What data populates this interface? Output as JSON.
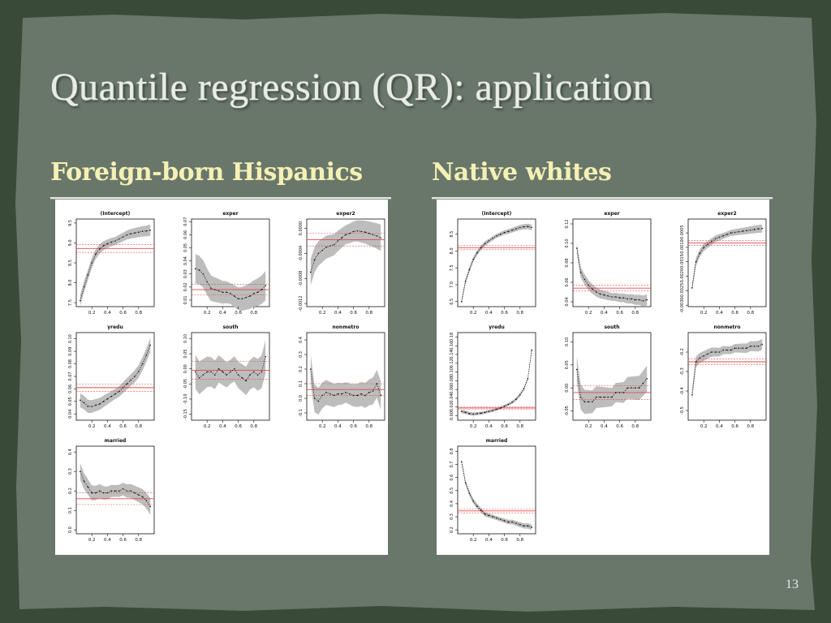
{
  "slide": {
    "title": "Quantile regression (QR): application",
    "left_heading": "Foreign-born Hispanics",
    "right_heading": "Native whites",
    "page_number": "13"
  },
  "colors": {
    "background_outer": "#3a4a38",
    "panel": "#69776a",
    "title_text": "#e9ece6",
    "heading_text": "#f5f0b4",
    "band_fill": "#bdbdbd",
    "ols_line": "#e24a4a"
  },
  "chart_data": [
    {
      "type": "line",
      "group": "Foreign-born Hispanics",
      "x": [
        0.05,
        0.1,
        0.15,
        0.2,
        0.25,
        0.3,
        0.35,
        0.4,
        0.45,
        0.5,
        0.55,
        0.6,
        0.65,
        0.7,
        0.75,
        0.8,
        0.85,
        0.9,
        0.95
      ],
      "panels": [
        {
          "title": "(Intercept)",
          "ylim": [
            7.4,
            9.6
          ],
          "yticks": [
            "7.5",
            "8.0",
            "8.5",
            "9.0",
            "9.5"
          ],
          "qr": [
            7.55,
            7.9,
            8.2,
            8.5,
            8.72,
            8.85,
            8.93,
            8.98,
            9.02,
            9.05,
            9.1,
            9.15,
            9.2,
            9.23,
            9.25,
            9.27,
            9.29,
            9.3,
            9.32
          ],
          "band": 0.1,
          "ols": 8.86,
          "ols_ci": 0.1
        },
        {
          "title": "exper",
          "ylim": [
            0.005,
            0.072
          ],
          "yticks": [
            "0.01",
            "0.02",
            "0.03",
            "0.04",
            "0.05",
            "0.06",
            "0.07"
          ],
          "qr": [
            0.034,
            0.033,
            0.03,
            0.024,
            0.019,
            0.018,
            0.017,
            0.016,
            0.016,
            0.015,
            0.013,
            0.011,
            0.011,
            0.012,
            0.013,
            0.015,
            0.016,
            0.018,
            0.021
          ],
          "band": 0.008,
          "ols": 0.018,
          "ols_ci": 0.004
        },
        {
          "title": "exper2",
          "ylim": [
            -0.00125,
            0.00015
          ],
          "yticks": [
            "-0.0012",
            "-0.0008",
            "-0.0004",
            "0.0000"
          ],
          "qr": [
            -0.0007,
            -0.0005,
            -0.0004,
            -0.00035,
            -0.0003,
            -0.00028,
            -0.00026,
            -0.0002,
            -0.00015,
            -0.0001,
            -8e-05,
            -5e-05,
            -4e-05,
            -5e-05,
            -6e-05,
            -8e-05,
            -0.0001,
            -0.00012,
            -0.00015
          ],
          "band": 0.00015,
          "ols": -0.00018,
          "ols_ci": 0.0001
        },
        {
          "title": "yredu",
          "ylim": [
            0.035,
            0.105
          ],
          "yticks": [
            "0.04",
            "0.05",
            "0.06",
            "0.07",
            "0.08",
            "0.09",
            "0.10"
          ],
          "qr": [
            0.051,
            0.049,
            0.046,
            0.046,
            0.047,
            0.048,
            0.05,
            0.052,
            0.054,
            0.056,
            0.058,
            0.061,
            0.064,
            0.067,
            0.07,
            0.074,
            0.08,
            0.087,
            0.095
          ],
          "band": 0.004,
          "ols": 0.061,
          "ols_ci": 0.003
        },
        {
          "title": "south",
          "ylim": [
            -0.17,
            0.12
          ],
          "yticks": [
            "-0.15",
            "-0.10",
            "-0.05",
            "0.00",
            "0.05",
            "0.10"
          ],
          "qr": [
            -0.01,
            -0.03,
            -0.02,
            -0.01,
            -0.01,
            -0.02,
            0.0,
            -0.01,
            -0.02,
            -0.01,
            0.0,
            -0.02,
            -0.03,
            -0.04,
            -0.02,
            -0.01,
            -0.02,
            -0.01,
            0.04
          ],
          "band": 0.04,
          "ols": -0.005,
          "ols_ci": 0.03
        },
        {
          "title": "nonmetro",
          "ylim": [
            -0.15,
            0.45
          ],
          "yticks": [
            "-0.1",
            "0.0",
            "0.1",
            "0.2",
            "0.3",
            "0.4"
          ],
          "qr": [
            0.2,
            0.0,
            -0.02,
            0.02,
            0.04,
            0.03,
            0.02,
            0.03,
            0.03,
            0.04,
            0.03,
            0.02,
            0.02,
            0.03,
            0.02,
            0.04,
            0.05,
            0.1,
            0.02
          ],
          "band": 0.07,
          "ols": 0.06,
          "ols_ci": 0.04
        },
        {
          "title": "married",
          "ylim": [
            -0.02,
            0.43
          ],
          "yticks": [
            "0.0",
            "0.1",
            "0.2",
            "0.3",
            "0.4"
          ],
          "qr": [
            0.3,
            0.25,
            0.22,
            0.19,
            0.19,
            0.2,
            0.19,
            0.19,
            0.2,
            0.2,
            0.2,
            0.21,
            0.2,
            0.2,
            0.19,
            0.18,
            0.17,
            0.15,
            0.12
          ],
          "band": 0.03,
          "ols": 0.16,
          "ols_ci": 0.03
        }
      ]
    },
    {
      "type": "line",
      "group": "Native whites",
      "x": [
        0.05,
        0.1,
        0.15,
        0.2,
        0.25,
        0.3,
        0.35,
        0.4,
        0.45,
        0.5,
        0.55,
        0.6,
        0.65,
        0.7,
        0.75,
        0.8,
        0.85,
        0.9,
        0.95
      ],
      "panels": [
        {
          "title": "(Intercept)",
          "ylim": [
            6.35,
            8.95
          ],
          "yticks": [
            "6.5",
            "7.0",
            "7.5",
            "8.0",
            "8.5"
          ],
          "qr": [
            6.5,
            7.1,
            7.45,
            7.75,
            7.95,
            8.1,
            8.22,
            8.3,
            8.38,
            8.45,
            8.5,
            8.55,
            8.58,
            8.62,
            8.66,
            8.7,
            8.72,
            8.73,
            8.7
          ],
          "band": 0.06,
          "ols": 8.1,
          "ols_ci": 0.06
        },
        {
          "title": "exper",
          "ylim": [
            0.035,
            0.125
          ],
          "yticks": [
            "0.04",
            "0.06",
            "0.08",
            "0.10",
            "0.12"
          ],
          "qr": [
            0.095,
            0.07,
            0.063,
            0.057,
            0.053,
            0.05,
            0.048,
            0.047,
            0.046,
            0.045,
            0.045,
            0.044,
            0.044,
            0.043,
            0.043,
            0.042,
            0.042,
            0.041,
            0.042
          ],
          "band": 0.004,
          "ols": 0.054,
          "ols_ci": 0.003
        },
        {
          "title": "exper2",
          "ylim": [
            -0.00305,
            -2e-05
          ],
          "yticks": [
            "-0.0030",
            "-0.0025",
            "-0.0020",
            "-0.0015",
            "-0.0010",
            "-0.0005"
          ],
          "qr": [
            -0.0024,
            -0.0015,
            -0.0012,
            -0.001,
            -0.0009,
            -0.0008,
            -0.0007,
            -0.00065,
            -0.0006,
            -0.00055,
            -0.0005,
            -0.00048,
            -0.00046,
            -0.00044,
            -0.00042,
            -0.0004,
            -0.00038,
            -0.00036,
            -0.00035
          ],
          "band": 0.0001,
          "ols": -0.00085,
          "ols_ci": 8e-05
        },
        {
          "title": "yredu",
          "ylim": [
            -0.01,
            0.19
          ],
          "yticks": [
            "0.00",
            "0.02",
            "0.04",
            "0.06",
            "0.08",
            "0.10",
            "0.12",
            "0.14",
            "0.16",
            "0.18"
          ],
          "qr": [
            0.01,
            0.008,
            0.005,
            0.004,
            0.005,
            0.006,
            0.008,
            0.01,
            0.012,
            0.015,
            0.018,
            0.022,
            0.026,
            0.031,
            0.038,
            0.048,
            0.062,
            0.085,
            0.15
          ],
          "band": 0.003,
          "ols": 0.018,
          "ols_ci": 0.003
        },
        {
          "title": "south",
          "ylim": [
            -0.07,
            0.12
          ],
          "yticks": [
            "-0.05",
            "0.00",
            "0.05",
            "0.10"
          ],
          "qr": [
            0.04,
            -0.02,
            -0.03,
            -0.03,
            -0.03,
            -0.02,
            -0.02,
            -0.02,
            -0.02,
            -0.02,
            -0.01,
            -0.01,
            -0.01,
            0.0,
            0.0,
            0.0,
            0.0,
            0.01,
            0.02
          ],
          "band": 0.02,
          "ols": -0.01,
          "ols_ci": 0.015
        },
        {
          "title": "nonmetro",
          "ylim": [
            -0.55,
            -0.1
          ],
          "yticks": [
            "-0.5",
            "-0.4",
            "-0.3",
            "-0.2"
          ],
          "qr": [
            -0.42,
            -0.25,
            -0.23,
            -0.22,
            -0.21,
            -0.2,
            -0.2,
            -0.2,
            -0.19,
            -0.19,
            -0.19,
            -0.18,
            -0.18,
            -0.18,
            -0.18,
            -0.17,
            -0.17,
            -0.17,
            -0.16
          ],
          "band": 0.02,
          "ols": -0.25,
          "ols_ci": 0.015
        },
        {
          "title": "married",
          "ylim": [
            0.17,
            0.84
          ],
          "yticks": [
            "0.2",
            "0.3",
            "0.4",
            "0.5",
            "0.6",
            "0.7",
            "0.8"
          ],
          "qr": [
            0.72,
            0.56,
            0.48,
            0.42,
            0.38,
            0.35,
            0.32,
            0.31,
            0.3,
            0.29,
            0.28,
            0.27,
            0.26,
            0.26,
            0.25,
            0.24,
            0.23,
            0.23,
            0.22
          ],
          "band": 0.015,
          "ols": 0.345,
          "ols_ci": 0.015
        }
      ]
    }
  ]
}
